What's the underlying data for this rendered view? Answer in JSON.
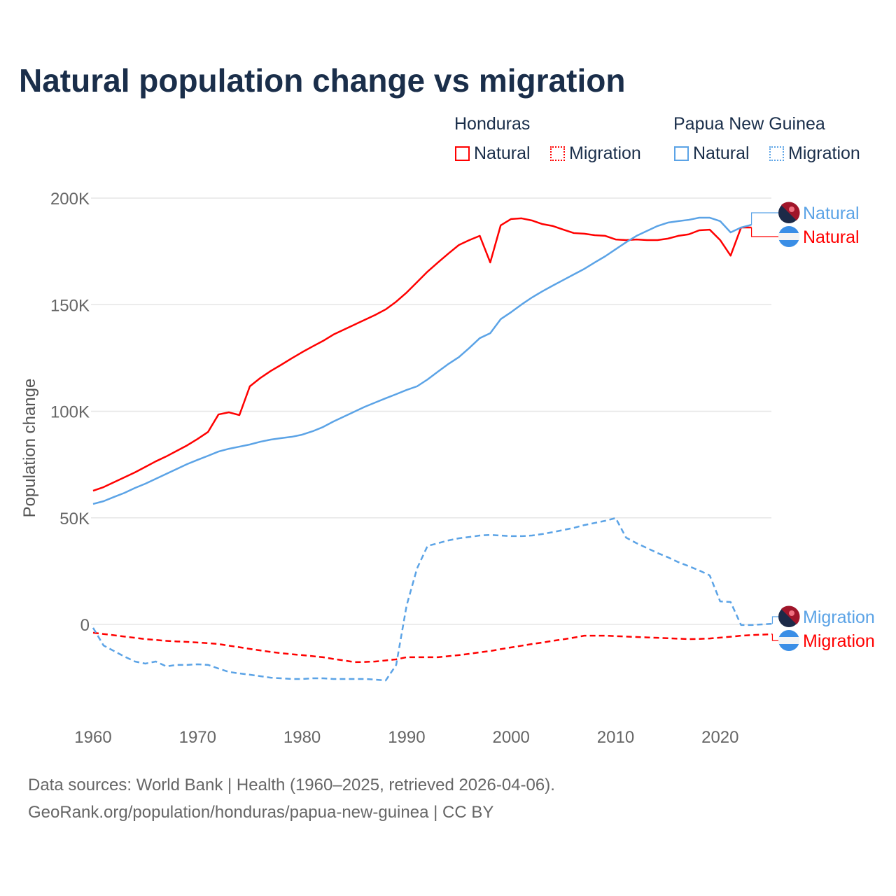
{
  "title": "Natural population change vs migration",
  "legend": {
    "groups": [
      {
        "name": "Honduras",
        "color": "#ff0000",
        "items": [
          "Natural",
          "Migration"
        ]
      },
      {
        "name": "Papua New Guinea",
        "color": "#5ba3e6",
        "items": [
          "Natural",
          "Migration"
        ]
      }
    ]
  },
  "footer": {
    "line1": "Data sources: World Bank | Health (1960–2025, retrieved 2026-04-06).",
    "line2": "GeoRank.org/population/honduras/papua-new-guinea | CC BY"
  },
  "chart_data": {
    "type": "line",
    "title": "Natural population change vs migration",
    "xlabel": "",
    "ylabel": "Population change",
    "xlim": [
      1960,
      2025
    ],
    "ylim": [
      -40000,
      200000
    ],
    "x_ticks": [
      "1960",
      "1970",
      "1980",
      "1990",
      "2000",
      "2010",
      "2020"
    ],
    "y_ticks": [
      {
        "v": 0,
        "label": "0"
      },
      {
        "v": 50000,
        "label": "50K"
      },
      {
        "v": 100000,
        "label": "100K"
      },
      {
        "v": 150000,
        "label": "150K"
      },
      {
        "v": 200000,
        "label": "200K"
      }
    ],
    "grid": true,
    "units": "thousands in series values",
    "series": [
      {
        "name": "Honduras Natural",
        "end_label": "Natural",
        "color": "#ff0000",
        "dash": false,
        "start": 1960,
        "values": [
          62.7,
          64.4,
          66.7,
          69,
          71.3,
          73.9,
          76.5,
          78.8,
          81.4,
          84,
          87,
          90.3,
          98.5,
          99.5,
          98.2,
          111.7,
          115.6,
          118.9,
          121.8,
          124.8,
          127.7,
          130.4,
          133,
          136,
          138.3,
          140.6,
          142.9,
          145.2,
          147.8,
          151.4,
          155.7,
          160.6,
          165.5,
          169.8,
          174,
          178,
          180.3,
          182.3,
          169.8,
          187.2,
          190.2,
          190.5,
          189.5,
          187.8,
          186.9,
          185.2,
          183.6,
          183.3,
          182.6,
          182.3,
          180.6,
          180.3,
          180.6,
          180.3,
          180.3,
          181,
          182.3,
          183,
          184.9,
          185.2,
          180.3,
          173,
          186.2,
          186.2
        ]
      },
      {
        "name": "Honduras Migration",
        "end_label": "Migration",
        "color": "#ff0000",
        "dash": true,
        "start": 1960,
        "values": [
          -3.9,
          -4.5,
          -5.1,
          -5.7,
          -6.3,
          -6.9,
          -7.3,
          -7.7,
          -8,
          -8.2,
          -8.5,
          -8.8,
          -9.2,
          -10,
          -10.7,
          -11.5,
          -12.2,
          -12.9,
          -13.5,
          -14,
          -14.4,
          -14.9,
          -15.4,
          -16.2,
          -16.9,
          -17.7,
          -17.6,
          -17.4,
          -16.9,
          -16.4,
          -15.4,
          -15.4,
          -15.4,
          -15.4,
          -14.9,
          -14.4,
          -13.8,
          -13.1,
          -12.5,
          -11.6,
          -10.8,
          -10,
          -9.2,
          -8.5,
          -7.7,
          -7,
          -6.2,
          -5.3,
          -5.3,
          -5.3,
          -5.5,
          -5.7,
          -5.9,
          -6.1,
          -6.3,
          -6.5,
          -6.7,
          -6.9,
          -6.8,
          -6.6,
          -6.2,
          -5.8,
          -5.3,
          -5,
          -4.8,
          -4.6
        ]
      },
      {
        "name": "Papua New Guinea Natural",
        "end_label": "Natural",
        "color": "#5ba3e6",
        "dash": false,
        "start": 1960,
        "values": [
          56.5,
          57.8,
          59.8,
          61.7,
          64,
          66,
          68.3,
          70.6,
          72.9,
          75.2,
          77.2,
          79.1,
          81.1,
          82.4,
          83.4,
          84.4,
          85.7,
          86.7,
          87.4,
          88,
          89,
          90.6,
          92.6,
          95.2,
          97.5,
          99.8,
          102.1,
          104.1,
          106.1,
          108,
          110,
          111.7,
          114.9,
          118.6,
          122.2,
          125.4,
          129.7,
          134.3,
          136.6,
          143.2,
          146.5,
          150.1,
          153.4,
          156.3,
          159,
          161.6,
          164.2,
          166.8,
          169.8,
          172.7,
          176,
          179.3,
          182.3,
          184.6,
          186.9,
          188.5,
          189.2,
          189.8,
          190.8,
          190.8,
          189.2,
          183.9,
          186.2,
          187.5
        ]
      },
      {
        "name": "Papua New Guinea Migration",
        "end_label": "Migration",
        "color": "#5ba3e6",
        "dash": true,
        "start": 1960,
        "values": [
          -1.6,
          -9.9,
          -12.5,
          -15.1,
          -17.4,
          -18.4,
          -17.4,
          -19.7,
          -19,
          -19,
          -18.7,
          -19,
          -20.7,
          -22.3,
          -23,
          -23.6,
          -24.3,
          -25,
          -25.3,
          -25.6,
          -25.6,
          -25.3,
          -25.3,
          -25.6,
          -25.6,
          -25.6,
          -25.6,
          -25.9,
          -26.3,
          -19,
          8.9,
          26.3,
          36.8,
          38.1,
          39.4,
          40.4,
          41,
          41.7,
          42,
          41.7,
          41.4,
          41.4,
          41.7,
          42.4,
          43.3,
          44.3,
          45.3,
          46.6,
          47.6,
          48.6,
          49.9,
          40.7,
          38.1,
          35.8,
          33.5,
          31.5,
          29.2,
          27.3,
          25.3,
          23,
          10.8,
          10.5,
          -0.3,
          -0.3,
          0,
          0.3
        ]
      }
    ]
  }
}
